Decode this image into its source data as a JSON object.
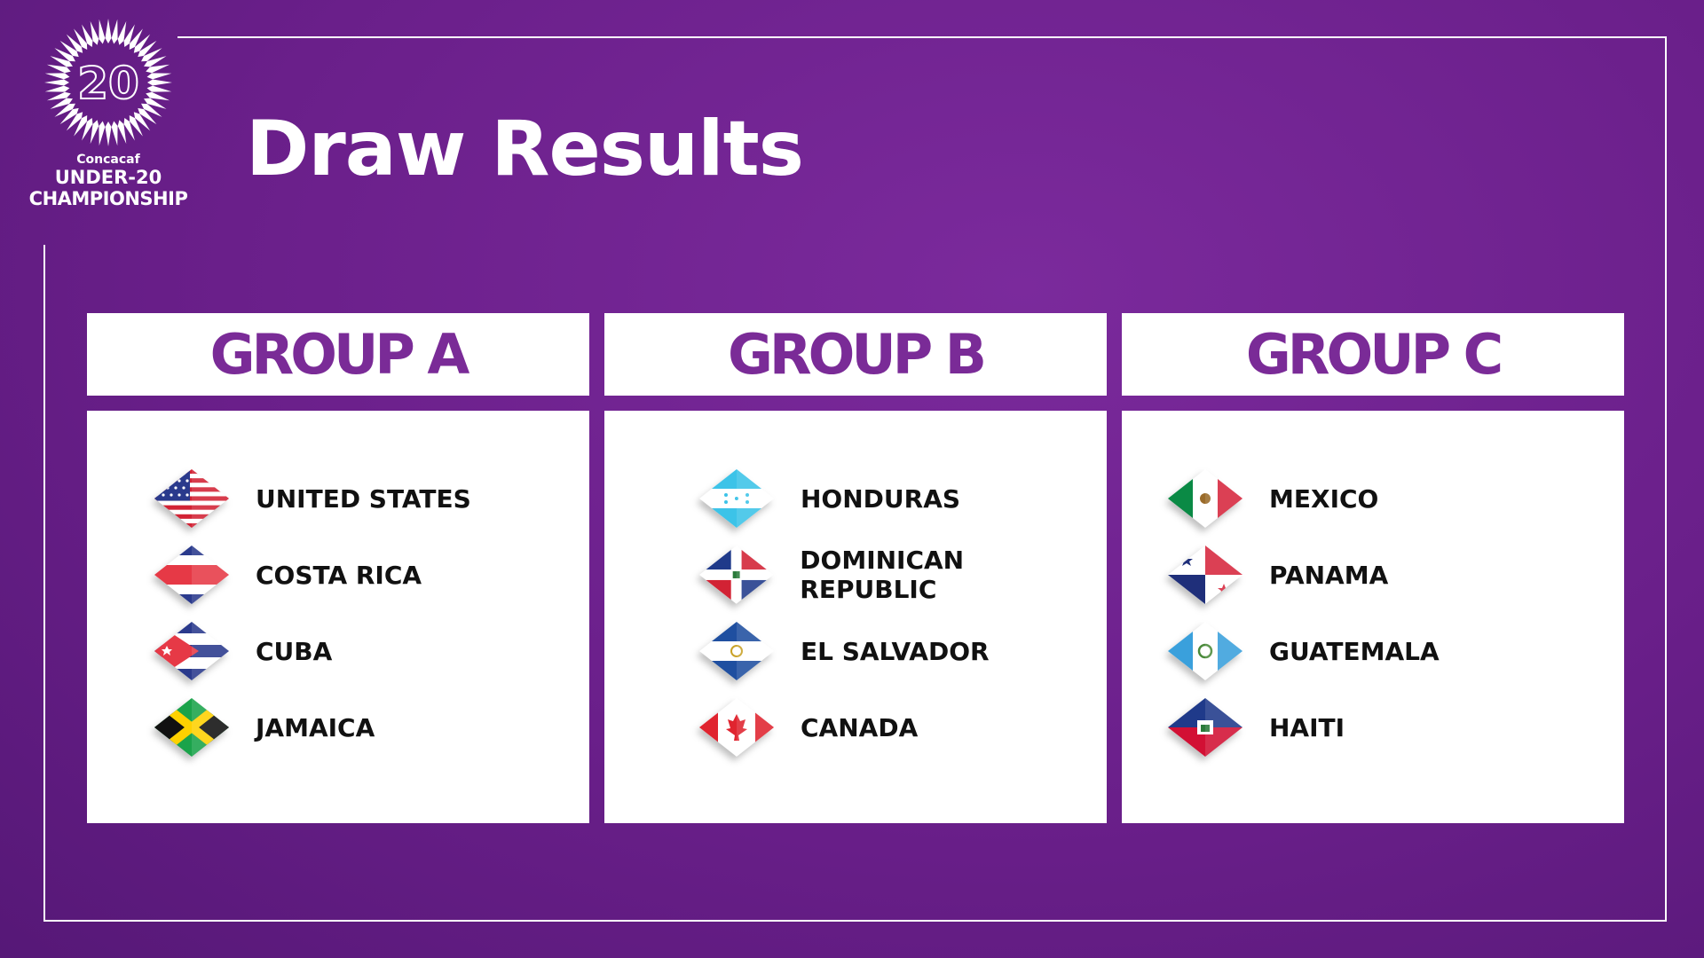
{
  "logo": {
    "org": "Concacaf",
    "line1": "UNDER-20",
    "line2": "CHAMPIONSHIP",
    "number": "20"
  },
  "title": "Draw Results",
  "groups": [
    {
      "name": "GROUP A",
      "teams": [
        {
          "name": "UNITED STATES",
          "flag": "usa"
        },
        {
          "name": "COSTA RICA",
          "flag": "crc"
        },
        {
          "name": "CUBA",
          "flag": "cub"
        },
        {
          "name": "JAMAICA",
          "flag": "jam"
        }
      ]
    },
    {
      "name": "GROUP B",
      "teams": [
        {
          "name": "HONDURAS",
          "flag": "hon"
        },
        {
          "name": "DOMINICAN REPUBLIC",
          "flag": "dom"
        },
        {
          "name": "EL SALVADOR",
          "flag": "slv"
        },
        {
          "name": "CANADA",
          "flag": "can"
        }
      ]
    },
    {
      "name": "GROUP C",
      "teams": [
        {
          "name": "MEXICO",
          "flag": "mex"
        },
        {
          "name": "PANAMA",
          "flag": "pan"
        },
        {
          "name": "GUATEMALA",
          "flag": "gua"
        },
        {
          "name": "HAITI",
          "flag": "hai"
        }
      ]
    }
  ],
  "colors": {
    "background": "#6a1f8a",
    "group_header_text": "#7a2b97"
  }
}
